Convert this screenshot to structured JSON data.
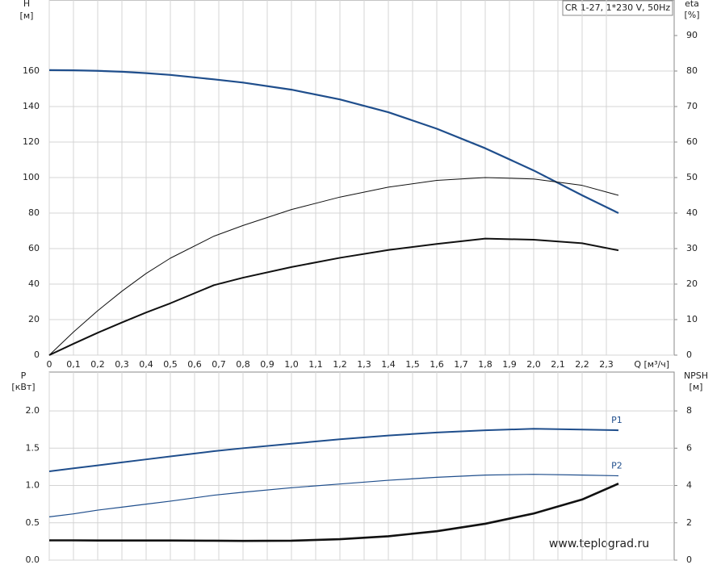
{
  "chart_data": [
    {
      "type": "line",
      "title": "CR 1-27, 1*230 V, 50Hz",
      "ylabel": "H",
      "yunit": "[м]",
      "y2label": "eta",
      "y2unit": "[%]",
      "xlabel": "Q [м³/ч]",
      "x": [
        0,
        0.1,
        0.2,
        0.3,
        0.4,
        0.5,
        0.68,
        0.8,
        1.0,
        1.2,
        1.4,
        1.6,
        1.8,
        2.0,
        2.2,
        2.35
      ],
      "xlim": [
        0,
        2.58
      ],
      "xticks": [
        {
          "value": 0,
          "label": "0"
        },
        {
          "value": 0.1,
          "label": "0,1"
        },
        {
          "value": 0.2,
          "label": "0,2"
        },
        {
          "value": 0.3,
          "label": "0,3"
        },
        {
          "value": 0.4,
          "label": "0,4"
        },
        {
          "value": 0.5,
          "label": "0,5"
        },
        {
          "value": 0.6,
          "label": "0,6"
        },
        {
          "value": 0.7,
          "label": "0,7"
        },
        {
          "value": 0.8,
          "label": "0,8"
        },
        {
          "value": 0.9,
          "label": "0,9"
        },
        {
          "value": 1.0,
          "label": "1,0"
        },
        {
          "value": 1.1,
          "label": "1,1"
        },
        {
          "value": 1.2,
          "label": "1,2"
        },
        {
          "value": 1.3,
          "label": "1,3"
        },
        {
          "value": 1.4,
          "label": "1,4"
        },
        {
          "value": 1.5,
          "label": "1,5"
        },
        {
          "value": 1.6,
          "label": "1,6"
        },
        {
          "value": 1.7,
          "label": "1,7"
        },
        {
          "value": 1.8,
          "label": "1,8"
        },
        {
          "value": 1.9,
          "label": "1,9"
        },
        {
          "value": 2.0,
          "label": "2,0"
        },
        {
          "value": 2.1,
          "label": "2,1"
        },
        {
          "value": 2.2,
          "label": "2,2"
        },
        {
          "value": 2.3,
          "label": "2,3"
        }
      ],
      "ylim": [
        0,
        200
      ],
      "yticks": [
        0,
        20,
        40,
        60,
        80,
        100,
        120,
        140,
        160
      ],
      "y2lim": [
        0,
        100
      ],
      "y2ticks": [
        0,
        10,
        20,
        30,
        40,
        50,
        60,
        70,
        80,
        90
      ],
      "grid": true,
      "series": [
        {
          "color": "#1f4e8c",
          "values": [
            160.5,
            160.4,
            160.1,
            159.6,
            158.8,
            157.8,
            155.3,
            153.5,
            149.5,
            144,
            136.8,
            127.5,
            116.5,
            104,
            90,
            80
          ]
        },
        {
          "color": "#111111",
          "axis": "y2",
          "values": [
            0,
            6.5,
            12.5,
            18,
            23,
            27.3,
            33.5,
            36.5,
            41,
            44.5,
            47.3,
            49.2,
            50,
            49.6,
            47.8,
            45
          ]
        },
        {
          "color": "#111111",
          "axis": "y2",
          "values": [
            0,
            3.2,
            6.3,
            9.2,
            12,
            14.6,
            19.7,
            21.8,
            24.8,
            27.4,
            29.6,
            31.3,
            32.8,
            32.5,
            31.5,
            29.5
          ]
        }
      ]
    },
    {
      "type": "line",
      "ylabel": "P",
      "yunit": "[кВт]",
      "y2label": "NPSH",
      "y2unit": "[м]",
      "watermark": "www.teplograd.ru",
      "x": [
        0,
        0.1,
        0.2,
        0.3,
        0.4,
        0.5,
        0.68,
        0.8,
        1.0,
        1.2,
        1.4,
        1.6,
        1.8,
        2.0,
        2.2,
        2.35
      ],
      "xlim": [
        0,
        2.58
      ],
      "ylim": [
        0,
        2.52
      ],
      "yticks": [
        {
          "value": 0,
          "label": "0.0"
        },
        {
          "value": 0.5,
          "label": "0.5"
        },
        {
          "value": 1.0,
          "label": "1.0"
        },
        {
          "value": 1.5,
          "label": "1.5"
        },
        {
          "value": 2.0,
          "label": "2.0"
        }
      ],
      "y2lim": [
        0,
        10.08
      ],
      "y2ticks": [
        0,
        2,
        4,
        6,
        8
      ],
      "grid": true,
      "series": [
        {
          "name": "P1",
          "color": "#1f4e8c",
          "values": [
            1.19,
            1.23,
            1.27,
            1.31,
            1.35,
            1.39,
            1.46,
            1.5,
            1.56,
            1.62,
            1.67,
            1.71,
            1.74,
            1.76,
            1.75,
            1.74
          ]
        },
        {
          "name": "P2",
          "color": "#1f4e8c",
          "values": [
            0.58,
            0.62,
            0.67,
            0.71,
            0.75,
            0.79,
            0.87,
            0.91,
            0.97,
            1.02,
            1.07,
            1.11,
            1.14,
            1.15,
            1.14,
            1.13
          ]
        },
        {
          "color": "#111111",
          "axis": "y2",
          "values": [
            1.06,
            1.06,
            1.05,
            1.05,
            1.05,
            1.05,
            1.04,
            1.03,
            1.04,
            1.12,
            1.28,
            1.55,
            1.95,
            2.5,
            3.25,
            4.1
          ]
        }
      ]
    }
  ]
}
